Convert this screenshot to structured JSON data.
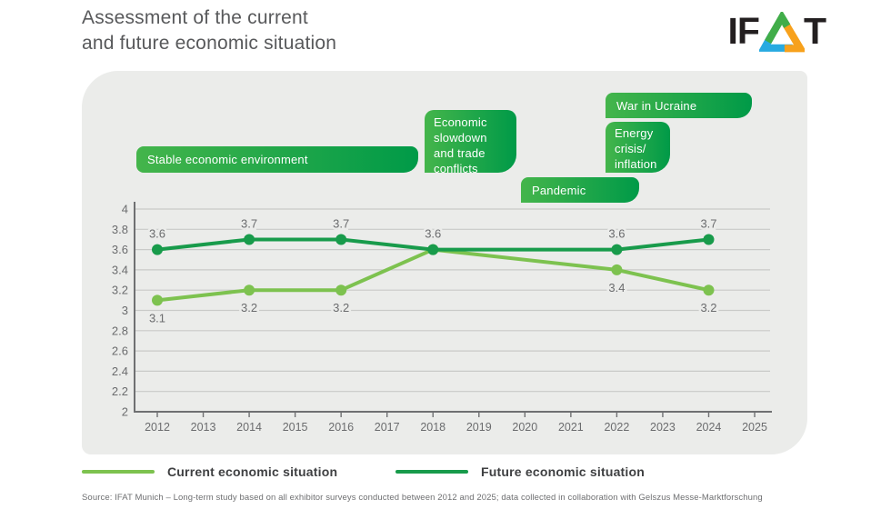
{
  "header": {
    "title_line1": "Assessment of the current",
    "title_line2": "and future economic situation",
    "logo": {
      "prefix": "IF",
      "suffix": "T",
      "triangle_colors": {
        "green": "#41ad49",
        "blue": "#27aae1",
        "orange": "#f7a11c"
      },
      "text_color": "#231f20"
    }
  },
  "colors": {
    "panel_background": "#ebecea",
    "gridline": "#c9cac8",
    "axis": "#6f7072",
    "tick_label": "#6b6c6e",
    "data_label": "#6b6c6e",
    "banner_gradient_start": "#44b54b",
    "banner_gradient_end": "#009a48",
    "current_series": "#7dc24f",
    "future_series": "#189b4b"
  },
  "chart_data": {
    "type": "line",
    "title": "Assessment of the current and future economic situation",
    "xlabel": "",
    "ylabel": "",
    "categories": [
      "2012",
      "2013",
      "2014",
      "2015",
      "2016",
      "2017",
      "2018",
      "2019",
      "2020",
      "2021",
      "2022",
      "2023",
      "2024",
      "2025"
    ],
    "ylim": [
      2,
      4
    ],
    "ytick_step": 0.2,
    "grid": true,
    "legend_position": "bottom",
    "series": [
      {
        "name": "Current economic situation",
        "color": "#7dc24f",
        "x": [
          "2012",
          "2014",
          "2016",
          "2018",
          "2022",
          "2024"
        ],
        "values": [
          3.1,
          3.2,
          3.2,
          3.6,
          3.4,
          3.2
        ],
        "label_positions": [
          "below",
          "below",
          "below",
          null,
          "below",
          "below"
        ]
      },
      {
        "name": "Future economic situation",
        "color": "#189b4b",
        "x": [
          "2012",
          "2014",
          "2016",
          "2018",
          "2022",
          "2024"
        ],
        "values": [
          3.6,
          3.7,
          3.7,
          3.6,
          3.6,
          3.7
        ],
        "label_positions": [
          "above",
          "above",
          "above",
          "above",
          "above",
          "above"
        ]
      }
    ],
    "annotations": [
      {
        "id": "stable",
        "label": "Stable economic environment"
      },
      {
        "id": "slowdown",
        "label": "Economic slowdown and trade conflicts"
      },
      {
        "id": "pandemic",
        "label": "Pandemic"
      },
      {
        "id": "energy",
        "label": "Energy crisis/ inflation"
      },
      {
        "id": "war",
        "label": "War in Ucraine"
      }
    ]
  },
  "source_note": "Source: IFAT Munich – Long-term study based on all exhibitor surveys conducted between 2012 and 2025; data collected in collaboration with Gelszus Messe-Marktforschung"
}
